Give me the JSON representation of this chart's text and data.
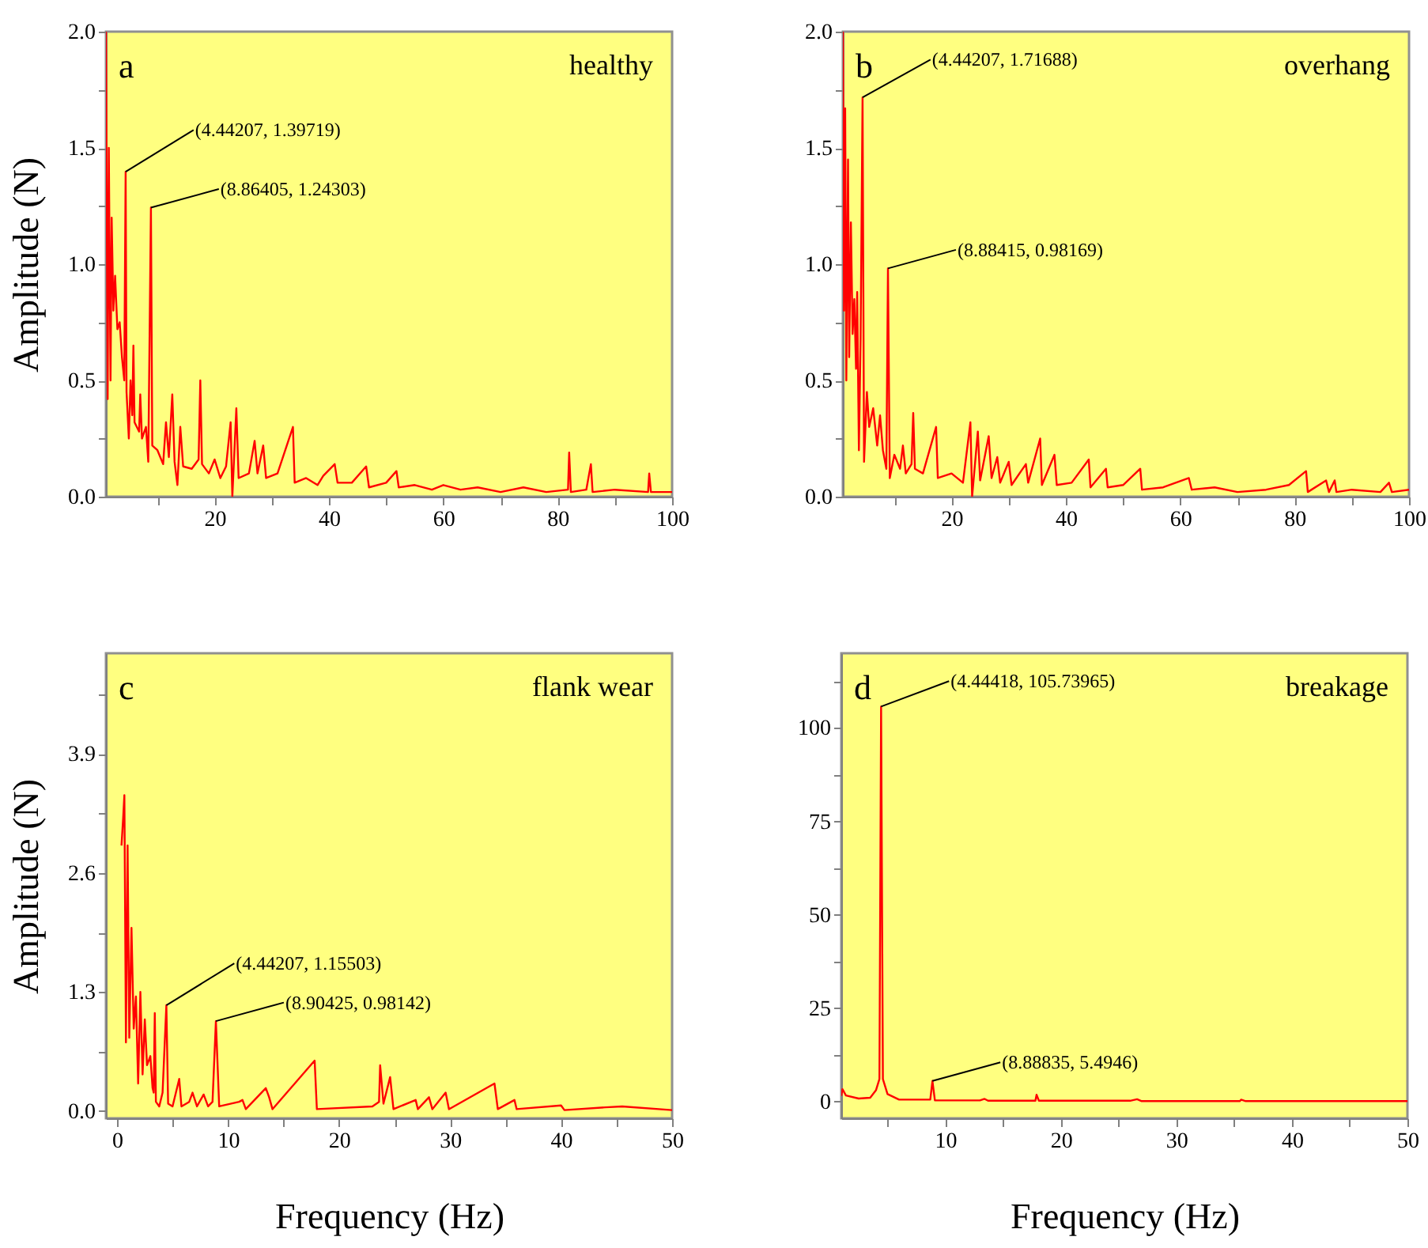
{
  "chart_data": [
    {
      "type": "line",
      "title": "a",
      "subtitle": "healthy",
      "ylabel": "Amplitude (N)",
      "xlim": [
        1,
        100
      ],
      "ylim": [
        0,
        2
      ],
      "xticks": [
        {
          "value": 10,
          "label": null
        },
        20,
        {
          "value": 30,
          "label": null
        },
        40,
        {
          "value": 50,
          "label": null
        },
        60,
        {
          "value": 70,
          "label": null
        },
        80,
        {
          "value": 90,
          "label": null
        },
        100
      ],
      "yticks": [
        {
          "value": 0,
          "label": "0.0"
        },
        {
          "value": 0.25,
          "label": null
        },
        0.5,
        {
          "value": 0.75,
          "label": null
        },
        {
          "value": 1,
          "label": "1.0"
        },
        {
          "value": 1.25,
          "label": null
        },
        1.5,
        {
          "value": 1.75,
          "label": null
        },
        {
          "value": 2,
          "label": "2.0"
        }
      ],
      "x": [
        1.0,
        1.3,
        1.5,
        1.8,
        2.0,
        2.3,
        2.6,
        3.0,
        3.4,
        3.8,
        4.2,
        4.44207,
        4.6,
        5.0,
        5.3,
        5.6,
        5.8,
        6.0,
        6.8,
        7.0,
        7.3,
        8.0,
        8.4,
        8.86405,
        9.1,
        10,
        11,
        11.5,
        12,
        12.6,
        13,
        13.5,
        14,
        14.5,
        16,
        17.2,
        17.5,
        17.8,
        19,
        20,
        21,
        22,
        22.8,
        23.1,
        23.8,
        24.2,
        26,
        27,
        27.5,
        28.5,
        29,
        31,
        33.7,
        34,
        36,
        38,
        39,
        41,
        41.5,
        44,
        46.5,
        47,
        50,
        51.8,
        52.2,
        55,
        58,
        60,
        63,
        66,
        70,
        74,
        78,
        81.8,
        82,
        82.3,
        85,
        85.8,
        86.1,
        90,
        95.8,
        96,
        96.3,
        100
      ],
      "series": [
        {
          "color": "#ff0000",
          "values": [
            2.0,
            0.42,
            1.5,
            0.5,
            1.2,
            0.8,
            0.95,
            0.72,
            0.75,
            0.6,
            0.5,
            1.39719,
            0.45,
            0.25,
            0.5,
            0.35,
            0.65,
            0.32,
            0.28,
            0.44,
            0.25,
            0.3,
            0.15,
            1.24303,
            0.22,
            0.2,
            0.14,
            0.32,
            0.17,
            0.44,
            0.15,
            0.05,
            0.3,
            0.13,
            0.12,
            0.16,
            0.5,
            0.14,
            0.1,
            0.16,
            0.08,
            0.13,
            0.32,
            0.0,
            0.38,
            0.08,
            0.1,
            0.24,
            0.1,
            0.22,
            0.08,
            0.1,
            0.3,
            0.06,
            0.08,
            0.05,
            0.09,
            0.14,
            0.06,
            0.06,
            0.13,
            0.04,
            0.06,
            0.11,
            0.04,
            0.05,
            0.03,
            0.05,
            0.03,
            0.04,
            0.02,
            0.04,
            0.02,
            0.03,
            0.19,
            0.02,
            0.03,
            0.14,
            0.02,
            0.03,
            0.02,
            0.1,
            0.02,
            0.02
          ]
        }
      ],
      "annotations": [
        {
          "text": "(4.44207, 1.39719)",
          "x": 4.44207,
          "y": 1.39719
        },
        {
          "text": "(8.86405, 1.24303)",
          "x": 8.86405,
          "y": 1.24303
        }
      ]
    },
    {
      "type": "line",
      "title": "b",
      "subtitle": "overhang",
      "xlim": [
        1,
        100
      ],
      "ylim": [
        0,
        2
      ],
      "xticks": [
        {
          "value": 10,
          "label": null
        },
        20,
        {
          "value": 30,
          "label": null
        },
        40,
        {
          "value": 50,
          "label": null
        },
        60,
        {
          "value": 70,
          "label": null
        },
        80,
        {
          "value": 90,
          "label": null
        },
        100
      ],
      "yticks": [
        {
          "value": 0,
          "label": "0.0"
        },
        {
          "value": 0.25,
          "label": null
        },
        0.5,
        {
          "value": 0.75,
          "label": null
        },
        {
          "value": 1,
          "label": "1.0"
        },
        {
          "value": 1.25,
          "label": null
        },
        1.5,
        {
          "value": 1.75,
          "label": null
        },
        {
          "value": 2,
          "label": "2.0"
        }
      ],
      "x": [
        1.0,
        1.2,
        1.4,
        1.6,
        1.9,
        2.1,
        2.4,
        2.7,
        3.0,
        3.3,
        3.5,
        3.8,
        4.1,
        4.44207,
        4.7,
        5.2,
        5.6,
        6.3,
        7,
        7.5,
        8,
        8.6,
        8.88415,
        9.2,
        10,
        11,
        11.5,
        12,
        13,
        13.3,
        13.6,
        15,
        17.3,
        17.6,
        20,
        22,
        23.3,
        23.6,
        24.6,
        25,
        26.5,
        27,
        28,
        28.5,
        30,
        30.5,
        33,
        33.4,
        35.5,
        35.8,
        38,
        38.4,
        41,
        44,
        44.3,
        47,
        47.3,
        50,
        53,
        53.3,
        57,
        61.5,
        62,
        66,
        70,
        75,
        79,
        82,
        82.3,
        85.5,
        86,
        87,
        87.3,
        90,
        95,
        96.5,
        97,
        100
      ],
      "series": [
        {
          "color": "#ff0000",
          "values": [
            2.0,
            0.8,
            1.67,
            0.5,
            1.45,
            0.6,
            1.18,
            0.7,
            0.85,
            0.55,
            0.88,
            0.2,
            0.68,
            1.71688,
            0.15,
            0.45,
            0.3,
            0.38,
            0.22,
            0.35,
            0.2,
            0.12,
            0.98169,
            0.08,
            0.18,
            0.12,
            0.22,
            0.1,
            0.14,
            0.36,
            0.12,
            0.1,
            0.3,
            0.08,
            0.1,
            0.06,
            0.32,
            0.0,
            0.28,
            0.07,
            0.26,
            0.08,
            0.17,
            0.06,
            0.15,
            0.05,
            0.14,
            0.06,
            0.25,
            0.05,
            0.18,
            0.05,
            0.06,
            0.16,
            0.04,
            0.12,
            0.04,
            0.05,
            0.12,
            0.03,
            0.04,
            0.08,
            0.03,
            0.04,
            0.02,
            0.03,
            0.05,
            0.11,
            0.02,
            0.07,
            0.02,
            0.07,
            0.02,
            0.03,
            0.02,
            0.06,
            0.02,
            0.03
          ]
        }
      ],
      "annotations": [
        {
          "text": "(4.44207, 1.71688)",
          "x": 4.44207,
          "y": 1.71688
        },
        {
          "text": "(8.88415, 0.98169)",
          "x": 8.88415,
          "y": 0.98169
        }
      ]
    },
    {
      "type": "line",
      "title": "c",
      "subtitle": "flank wear",
      "xlabel": "Frequency (Hz)",
      "ylabel": "Amplitude (N)",
      "xlim": [
        -1,
        50
      ],
      "ylim": [
        -0.08,
        5.0
      ],
      "xticks": [
        0,
        {
          "value": 5,
          "label": null
        },
        10,
        {
          "value": 15,
          "label": null
        },
        20,
        {
          "value": 25,
          "label": null
        },
        30,
        {
          "value": 35,
          "label": null
        },
        40,
        {
          "value": 45,
          "label": null
        },
        50
      ],
      "yticks": [
        {
          "value": 0,
          "label": "0.0"
        },
        {
          "value": 0.65,
          "label": null
        },
        1.3,
        {
          "value": 1.95,
          "label": null
        },
        2.6,
        {
          "value": 3.25,
          "label": null
        },
        3.9,
        {
          "value": 4.55,
          "label": null
        }
      ],
      "x": [
        0.4,
        0.55,
        0.66,
        0.8,
        0.95,
        1.1,
        1.3,
        1.5,
        1.7,
        1.9,
        2.1,
        2.3,
        2.5,
        2.7,
        3.0,
        3.2,
        3.3,
        3.4,
        3.5,
        3.8,
        4.1,
        4.44207,
        4.6,
        5.0,
        5.6,
        5.8,
        6.5,
        6.8,
        7.2,
        7.8,
        8.2,
        8.6,
        8.90425,
        9.2,
        11,
        11.3,
        11.6,
        13.4,
        13.7,
        14.0,
        17.8,
        18.0,
        23,
        23.6,
        23.7,
        24.0,
        24.6,
        24.9,
        26.9,
        27.1,
        28.1,
        28.4,
        29.2,
        29.6,
        29.9,
        34,
        34.3,
        35.8,
        36,
        40,
        40.3,
        44,
        45.5,
        50
      ],
      "series": [
        {
          "color": "#ff0000",
          "values": [
            2.9,
            3.2,
            3.45,
            0.75,
            2.9,
            0.8,
            2.0,
            0.9,
            1.25,
            0.3,
            1.3,
            0.4,
            1.0,
            0.5,
            0.6,
            0.25,
            0.2,
            1.07,
            0.1,
            0.05,
            0.2,
            1.15503,
            0.08,
            0.05,
            0.35,
            0.05,
            0.1,
            0.2,
            0.05,
            0.18,
            0.05,
            0.1,
            0.98142,
            0.05,
            0.1,
            0.12,
            0.02,
            0.25,
            0.15,
            0.02,
            0.55,
            0.02,
            0.05,
            0.1,
            0.5,
            0.08,
            0.37,
            0.02,
            0.12,
            0.02,
            0.15,
            0.02,
            0.14,
            0.2,
            0.02,
            0.3,
            0.02,
            0.12,
            0.02,
            0.06,
            0.01,
            0.04,
            0.05,
            0.01
          ]
        }
      ],
      "annotations": [
        {
          "text": "(4.44207, 1.15503)",
          "x": 4.44207,
          "y": 1.15503
        },
        {
          "text": "(8.90425, 0.98142)",
          "x": 8.90425,
          "y": 0.98142
        }
      ]
    },
    {
      "type": "line",
      "title": "d",
      "subtitle": "breakage",
      "xlabel": "Frequency (Hz)",
      "xlim": [
        1,
        50
      ],
      "ylim": [
        -4.5,
        120
      ],
      "xticks": [
        {
          "value": 5,
          "label": null
        },
        10,
        {
          "value": 15,
          "label": null
        },
        20,
        {
          "value": 25,
          "label": null
        },
        30,
        {
          "value": 35,
          "label": null
        },
        40,
        {
          "value": 45,
          "label": null
        },
        50
      ],
      "yticks": [
        0,
        {
          "value": 12.5,
          "label": null
        },
        25,
        {
          "value": 37.5,
          "label": null
        },
        50,
        {
          "value": 62.5,
          "label": null
        },
        75,
        {
          "value": 87.5,
          "label": null
        },
        100,
        {
          "value": 112.5,
          "label": null
        }
      ],
      "x": [
        1.0,
        1.1,
        1.4,
        2.5,
        3.5,
        4.0,
        4.3,
        4.44418,
        4.6,
        5.0,
        6.0,
        8.7,
        8.88835,
        9.1,
        13,
        13.4,
        13.7,
        17.8,
        17.9,
        18.1,
        26,
        26.6,
        27,
        35.5,
        35.6,
        36,
        50
      ],
      "series": [
        {
          "color": "#ff0000",
          "values": [
            1.5,
            3.3,
            1.6,
            0.8,
            1.0,
            3.0,
            6.0,
            105.73965,
            6.0,
            2.0,
            0.5,
            0.5,
            5.4946,
            0.3,
            0.3,
            0.7,
            0.2,
            0.2,
            1.8,
            0.2,
            0.2,
            0.6,
            0.1,
            0.1,
            0.5,
            0.1,
            0.1
          ]
        }
      ],
      "annotations": [
        {
          "text": "(4.44418, 105.73965)",
          "x": 4.44418,
          "y": 105.73965
        },
        {
          "text": "(8.88835, 5.4946)",
          "x": 8.88835,
          "y": 5.4946
        }
      ]
    }
  ]
}
